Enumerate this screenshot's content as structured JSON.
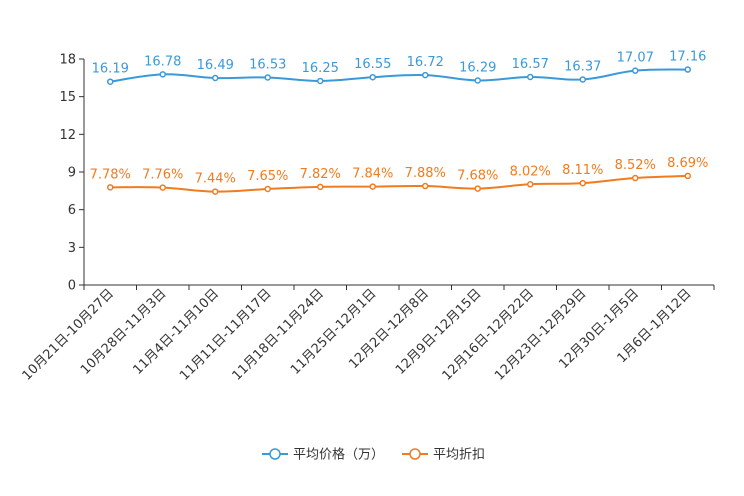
{
  "chart_data": {
    "type": "line",
    "title": "",
    "xlabel": "",
    "ylabel": "",
    "ylim": [
      0,
      18
    ],
    "yticks": [
      0,
      3,
      6,
      9,
      12,
      15,
      18
    ],
    "grid": false,
    "legend_position": "bottom-center",
    "categories": [
      "10月21日-10月27日",
      "10月28日-11月3日",
      "11月4日-11月10日",
      "11月11日-11月17日",
      "11月18日-11月24日",
      "11月25日-12月1日",
      "12月2日-12月8日",
      "12月9日-12月15日",
      "12月16日-12月22日",
      "12月23日-12月29日",
      "12月30日-1月5日",
      "1月6日-1月12日"
    ],
    "series": [
      {
        "name": "平均价格（万）",
        "color": "#3a9ad9",
        "values": [
          16.19,
          16.78,
          16.49,
          16.53,
          16.25,
          16.55,
          16.72,
          16.29,
          16.57,
          16.37,
          17.07,
          17.16
        ],
        "labels": [
          "16.19",
          "16.78",
          "16.49",
          "16.53",
          "16.25",
          "16.55",
          "16.72",
          "16.29",
          "16.57",
          "16.37",
          "17.07",
          "17.16"
        ]
      },
      {
        "name": "平均折扣",
        "color": "#f07c1f",
        "values": [
          7.78,
          7.76,
          7.44,
          7.65,
          7.82,
          7.84,
          7.88,
          7.68,
          8.02,
          8.11,
          8.52,
          8.69
        ],
        "labels": [
          "7.78%",
          "7.76%",
          "7.44%",
          "7.65%",
          "7.82%",
          "7.84%",
          "7.88%",
          "7.68%",
          "8.02%",
          "8.11%",
          "8.52%",
          "8.69%"
        ]
      }
    ]
  }
}
